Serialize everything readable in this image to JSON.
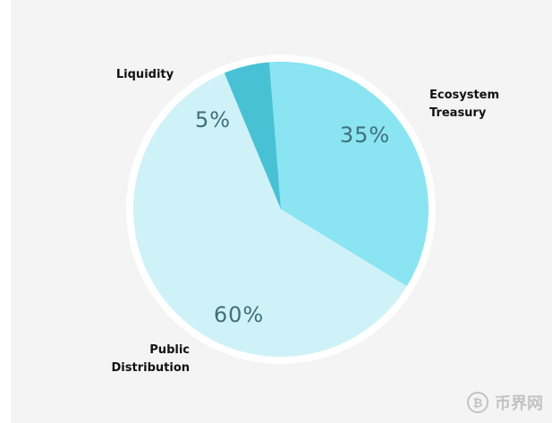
{
  "chart_data": {
    "type": "pie",
    "title": "",
    "slices": [
      {
        "label": "Ecosystem Treasury",
        "label_lines": [
          "Ecosystem",
          "Treasury"
        ],
        "value": 35,
        "value_label": "35%",
        "color": "#8ae4f2"
      },
      {
        "label": "Public Distribution",
        "label_lines": [
          "Public",
          "Distribution"
        ],
        "value": 60,
        "value_label": "60%",
        "color": "#cff2f8"
      },
      {
        "label": "Liquidity",
        "label_lines": [
          "Liquidity"
        ],
        "value": 5,
        "value_label": "5%",
        "color": "#48c1d4"
      }
    ]
  },
  "watermark": {
    "text": "币界网",
    "icon": "bitcoin-icon"
  }
}
